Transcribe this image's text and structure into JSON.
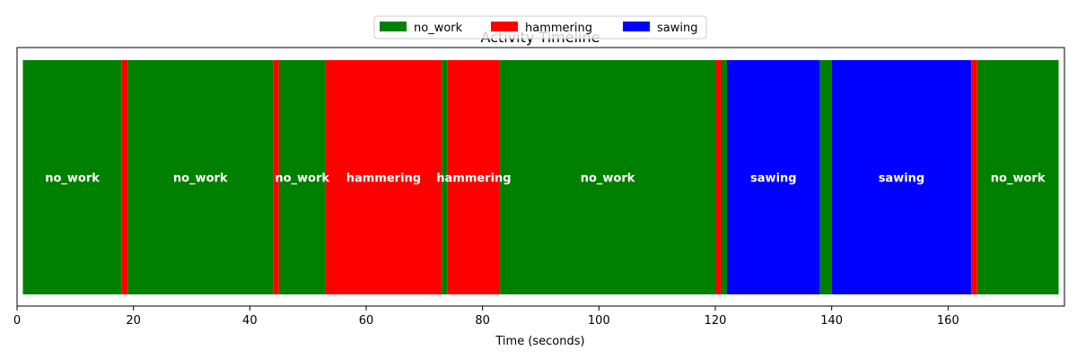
{
  "chart_data": {
    "type": "bar",
    "title": "Activity Timeline",
    "xlabel": "Time (seconds)",
    "ylabel": "",
    "xlim": [
      0,
      180
    ],
    "xticks": [
      0,
      20,
      40,
      60,
      80,
      100,
      120,
      140,
      160
    ],
    "grid": false,
    "legend_placement": "top-center",
    "legend": [
      {
        "name": "no_work",
        "color": "#008000"
      },
      {
        "name": "hammering",
        "color": "#ff0000"
      },
      {
        "name": "sawing",
        "color": "#0000ff"
      }
    ],
    "segments": [
      {
        "start": 1,
        "end": 18,
        "activity": "no_work",
        "label": "no_work"
      },
      {
        "start": 18,
        "end": 19,
        "activity": "hammering",
        "label": ""
      },
      {
        "start": 19,
        "end": 44,
        "activity": "no_work",
        "label": "no_work"
      },
      {
        "start": 44,
        "end": 45,
        "activity": "hammering",
        "label": ""
      },
      {
        "start": 45,
        "end": 53,
        "activity": "no_work",
        "label": "no_work"
      },
      {
        "start": 53,
        "end": 73,
        "activity": "hammering",
        "label": "hammering"
      },
      {
        "start": 73,
        "end": 74,
        "activity": "no_work",
        "label": ""
      },
      {
        "start": 74,
        "end": 83,
        "activity": "hammering",
        "label": "hammering"
      },
      {
        "start": 83,
        "end": 120,
        "activity": "no_work",
        "label": "no_work"
      },
      {
        "start": 120,
        "end": 121,
        "activity": "hammering",
        "label": ""
      },
      {
        "start": 121,
        "end": 122,
        "activity": "no_work",
        "label": ""
      },
      {
        "start": 122,
        "end": 138,
        "activity": "sawing",
        "label": "sawing"
      },
      {
        "start": 138,
        "end": 140,
        "activity": "no_work",
        "label": ""
      },
      {
        "start": 140,
        "end": 164,
        "activity": "sawing",
        "label": "sawing"
      },
      {
        "start": 164,
        "end": 165,
        "activity": "hammering",
        "label": ""
      },
      {
        "start": 165,
        "end": 179,
        "activity": "no_work",
        "label": "no_work"
      }
    ]
  }
}
